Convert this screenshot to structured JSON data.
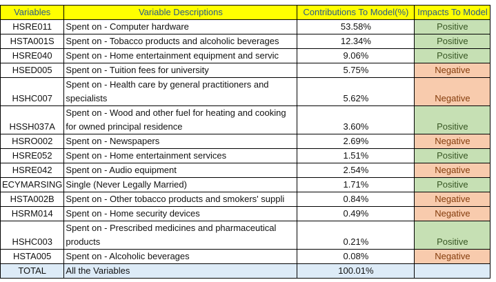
{
  "headers": {
    "variables": "Variables",
    "descriptions": "Variable Descriptions",
    "contributions": "Contributions To Model(%)",
    "impacts": "Impacts To Model"
  },
  "rows": [
    {
      "code": "HSRE011",
      "desc": "Spent on - Computer hardware",
      "pct": "53.58%",
      "impact": "Positive"
    },
    {
      "code": "HSTA001S",
      "desc": "Spent on - Tobacco products and alcoholic beverages",
      "pct": "12.34%",
      "impact": "Positive"
    },
    {
      "code": "HSRE040",
      "desc": "Spent on - Home entertainment equipment and servic",
      "pct": "9.06%",
      "impact": "Positive"
    },
    {
      "code": "HSED005",
      "desc": "Spent on - Tuition fees for university",
      "pct": "5.75%",
      "impact": "Negative"
    },
    {
      "code": "HSHC007",
      "desc": "Spent on - Health care by general practitioners and specialists",
      "pct": "5.62%",
      "impact": "Negative"
    },
    {
      "code": "HSSH037A",
      "desc": "Spent on - Wood and other fuel for heating and cooking for owned principal residence",
      "pct": "3.60%",
      "impact": "Positive"
    },
    {
      "code": "HSRO002",
      "desc": "Spent on - Newspapers",
      "pct": "2.69%",
      "impact": "Negative"
    },
    {
      "code": "HSRE052",
      "desc": "Spent on - Home entertainment services",
      "pct": "1.51%",
      "impact": "Positive"
    },
    {
      "code": "HSRE042",
      "desc": "Spent on - Audio equipment",
      "pct": "2.54%",
      "impact": "Negative"
    },
    {
      "code": "ECYMARSING",
      "desc": "Single (Never Legally Married)",
      "pct": "1.71%",
      "impact": "Positive"
    },
    {
      "code": "HSTA002B",
      "desc": "Spent on - Other tobacco products and smokers' suppli",
      "pct": "0.84%",
      "impact": "Negative"
    },
    {
      "code": "HSRM014",
      "desc": "Spent on - Home security devices",
      "pct": "0.49%",
      "impact": "Negative"
    },
    {
      "code": "HSHC003",
      "desc": "Spent on - Prescribed medicines and pharmaceutical products",
      "pct": "0.21%",
      "impact": "Positive"
    },
    {
      "code": "HSTA005",
      "desc": "Spent on - Alcoholic beverages",
      "pct": "0.08%",
      "impact": "Negative"
    }
  ],
  "total": {
    "code": "TOTAL",
    "desc": "All the Variables",
    "pct": "100.01%",
    "impact": ""
  },
  "colors": {
    "header_bg": "#ffff00",
    "positive_bg": "#c6e0b4",
    "negative_bg": "#f8cbad",
    "total_bg": "#ddebf7"
  }
}
